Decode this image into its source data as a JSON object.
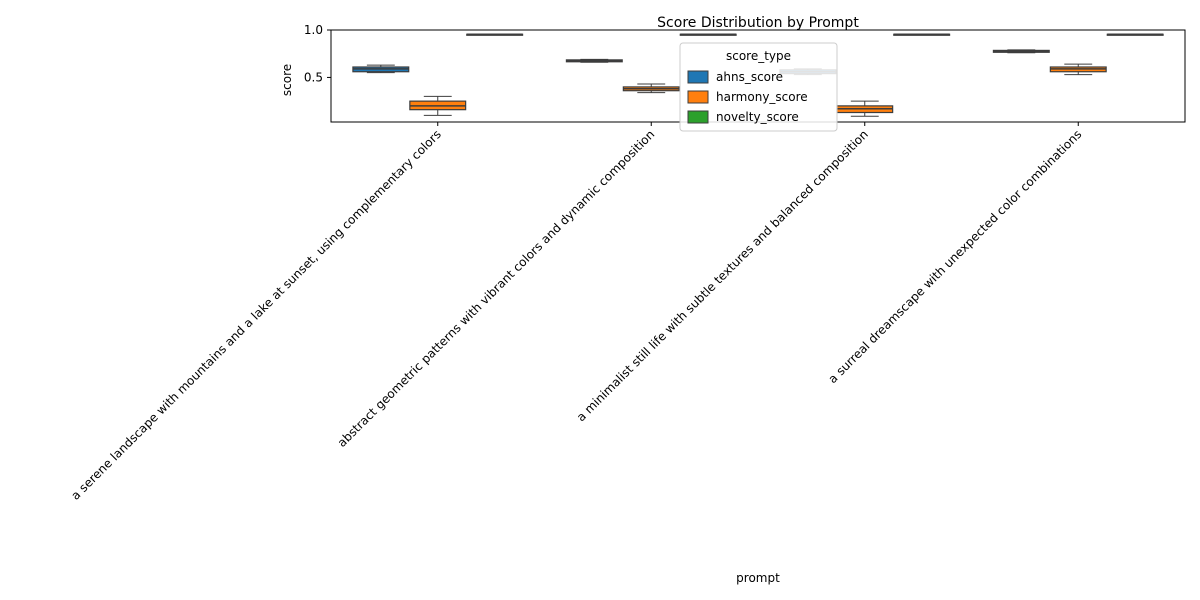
{
  "chart_data": {
    "type": "box",
    "title": "Score Distribution by Prompt",
    "xlabel": "prompt",
    "ylabel": "score",
    "ylim": [
      0.03,
      1.0
    ],
    "yticks": [
      {
        "value": 0.5,
        "label": "0.5"
      },
      {
        "value": 1.0,
        "label": "1.0"
      }
    ],
    "categories": [
      "a serene landscape with mountains and a lake at sunset, using complementary colors",
      "abstract geometric patterns with vibrant colors and dynamic composition",
      "a minimalist still life with subtle textures and balanced composition",
      "a surreal dreamscape with unexpected color combinations"
    ],
    "legend": {
      "title": "score_type",
      "position": "top-center"
    },
    "series": [
      {
        "name": "ahns_score",
        "color": "#1f77b4",
        "boxes": [
          {
            "min": 0.55,
            "q1": 0.56,
            "median": 0.59,
            "q3": 0.61,
            "max": 0.63
          },
          {
            "min": 0.66,
            "q1": 0.665,
            "median": 0.675,
            "q3": 0.685,
            "max": 0.69
          },
          {
            "min": 0.53,
            "q1": 0.54,
            "median": 0.56,
            "q3": 0.58,
            "max": 0.59
          },
          {
            "min": 0.76,
            "q1": 0.765,
            "median": 0.775,
            "q3": 0.785,
            "max": 0.79
          }
        ]
      },
      {
        "name": "harmony_score",
        "color": "#ff7f0e",
        "boxes": [
          {
            "min": 0.1,
            "q1": 0.16,
            "median": 0.2,
            "q3": 0.25,
            "max": 0.3
          },
          {
            "min": 0.34,
            "q1": 0.36,
            "median": 0.38,
            "q3": 0.4,
            "max": 0.43
          },
          {
            "min": 0.09,
            "q1": 0.13,
            "median": 0.17,
            "q3": 0.2,
            "max": 0.25
          },
          {
            "min": 0.53,
            "q1": 0.56,
            "median": 0.59,
            "q3": 0.61,
            "max": 0.64
          }
        ]
      },
      {
        "name": "novelty_score",
        "color": "#2ca02c",
        "boxes": [
          {
            "min": 0.955,
            "q1": 0.955,
            "median": 0.955,
            "q3": 0.955,
            "max": 0.955
          },
          {
            "min": 0.955,
            "q1": 0.955,
            "median": 0.955,
            "q3": 0.955,
            "max": 0.955
          },
          {
            "min": 0.955,
            "q1": 0.955,
            "median": 0.955,
            "q3": 0.955,
            "max": 0.955
          },
          {
            "min": 0.955,
            "q1": 0.955,
            "median": 0.955,
            "q3": 0.955,
            "max": 0.955
          }
        ]
      }
    ]
  }
}
